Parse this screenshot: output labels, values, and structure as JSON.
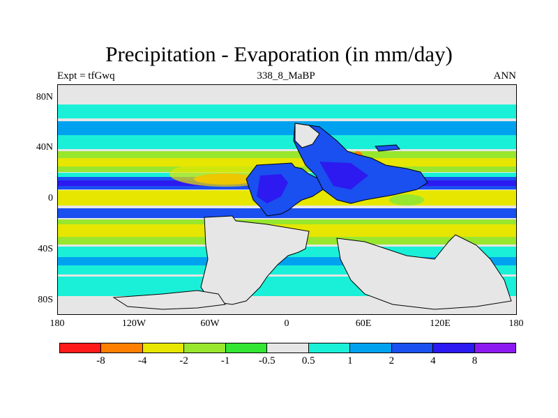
{
  "title": "Precipitation - Evaporation (in mm/day)",
  "subtitle_left": "Expt = tfGwq",
  "subtitle_center": "338_8_MaBP",
  "subtitle_right": "ANN",
  "lat_labels": [
    "80N",
    "40N",
    "0",
    "40S",
    "80S"
  ],
  "lon_labels": [
    "180",
    "120W",
    "60W",
    "0",
    "60E",
    "120E",
    "180"
  ],
  "colorbar": {
    "colors": [
      "#ff1a1a",
      "#ff8000",
      "#e6e600",
      "#99e62e",
      "#33e633",
      "#e6e6e6",
      "#1af0d8",
      "#00a2f0",
      "#1a4ff0",
      "#2c1af0",
      "#8c1af0"
    ],
    "labels": [
      "-8",
      "-4",
      "-2",
      "-1",
      "-0.5",
      "0.5",
      "1",
      "2",
      "4",
      "8"
    ]
  },
  "colors": {
    "land": "#e6e6e6",
    "coast": "#000000"
  }
}
